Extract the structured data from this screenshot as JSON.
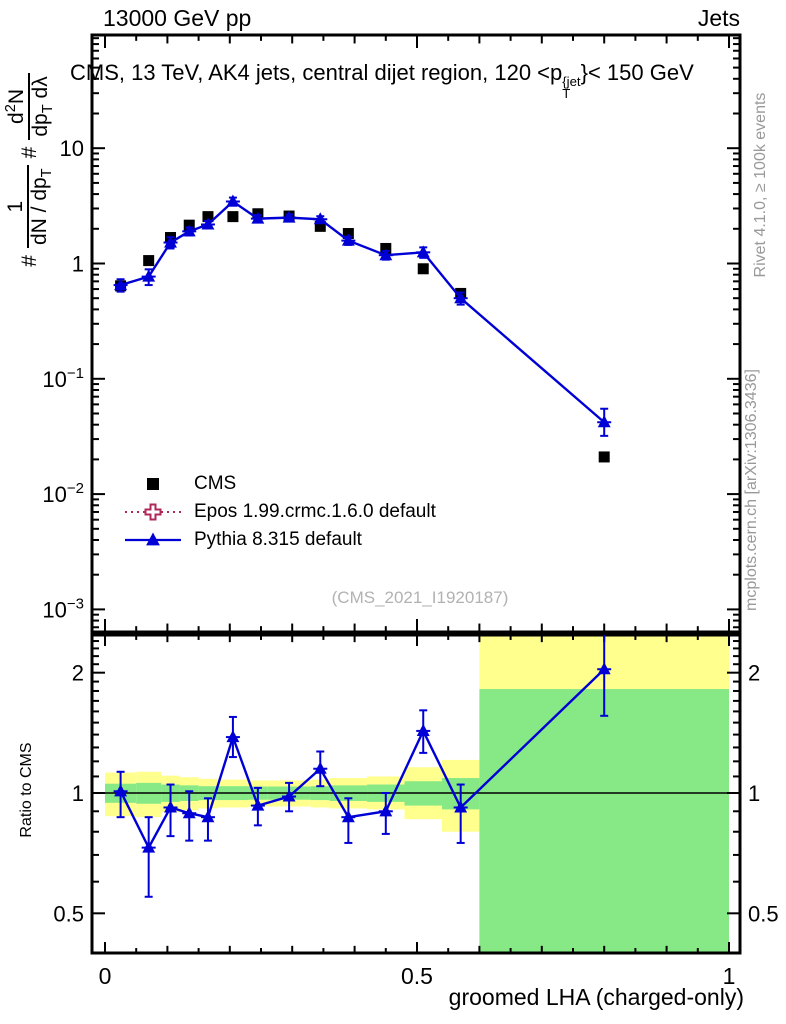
{
  "header": {
    "left": "13000 GeV pp",
    "right": "Jets"
  },
  "title": {
    "pre": "CMS, 13 TeV, AK4 jets, central dijet region, 120 <p",
    "sup": "{jet",
    "sub": "T",
    "post": "}< 150 GeV"
  },
  "ylabel": {
    "hash1": "#",
    "f1num": [
      {
        "t": "1"
      }
    ],
    "f1den": [
      {
        "t": "dN / dp"
      },
      {
        "t": "T",
        "sub": true
      }
    ],
    "hash2": "#",
    "f2num": [
      {
        "t": "d"
      },
      {
        "t": "2",
        "sup": true
      },
      {
        "t": "N"
      }
    ],
    "f2den": [
      {
        "t": "dp"
      },
      {
        "t": "T",
        "sub": true
      },
      {
        "t": " dλ"
      }
    ]
  },
  "xlabel": "groomed LHA (charged-only)",
  "ratio_ylabel": "Ratio to CMS",
  "side": {
    "rivet": "Rivet 4.1.0, ≥ 100k events",
    "mcplots": "mcplots.cern.ch [arXiv:1306.3436]"
  },
  "watermark": "(CMS_2021_I1920187)",
  "legend": {
    "items": [
      {
        "label": "CMS",
        "marker": "square",
        "line": "none",
        "color": "#000000"
      },
      {
        "label": "Epos 1.99.crmc.1.6.0 default",
        "marker": "open-cross",
        "line": "dotted",
        "color": "#b02858"
      },
      {
        "label": "Pythia 8.315 default",
        "marker": "triangle",
        "line": "solid",
        "color": "#0000d6"
      }
    ]
  },
  "colors": {
    "cms": "#000000",
    "epos": "#b02858",
    "pythia": "#0000d6",
    "band_yellow": "#ffff8e",
    "band_green": "#86e986",
    "gray_text": "#999999",
    "watermark": "#b2b2b2"
  },
  "chart_data": {
    "type": "line",
    "title": "CMS, 13 TeV, AK4 jets, central dijet region, 120 < p_T^{jet} < 150 GeV",
    "xlabel": "groomed LHA (charged-only)",
    "ylabel": "# 1/(dN/dp_T) # d^2N/(dp_T dλ)",
    "ratio_label": "Ratio to CMS",
    "x": [
      0.025,
      0.07,
      0.105,
      0.135,
      0.165,
      0.205,
      0.245,
      0.295,
      0.345,
      0.39,
      0.45,
      0.51,
      0.57,
      0.8
    ],
    "bin_edges": [
      0,
      0.05,
      0.09,
      0.12,
      0.15,
      0.18,
      0.23,
      0.26,
      0.33,
      0.36,
      0.42,
      0.48,
      0.54,
      0.6,
      1.0
    ],
    "series": [
      {
        "name": "CMS",
        "marker": "square",
        "y": [
          0.64,
          1.06,
          1.68,
          2.15,
          2.55,
          2.55,
          2.7,
          2.58,
          2.1,
          1.82,
          1.35,
          0.9,
          0.55,
          0.021
        ]
      },
      {
        "name": "Pythia 8.315 default",
        "marker": "triangle",
        "y": [
          0.65,
          0.77,
          1.52,
          1.9,
          2.18,
          3.45,
          2.45,
          2.5,
          2.42,
          1.58,
          1.18,
          1.25,
          0.5,
          0.042
        ],
        "err_up": [
          0.08,
          0.12,
          0.17,
          0.15,
          0.16,
          0.28,
          0.18,
          0.16,
          0.15,
          0.13,
          0.1,
          0.13,
          0.06,
          0.013
        ],
        "err_dn": [
          0.08,
          0.12,
          0.17,
          0.15,
          0.16,
          0.28,
          0.18,
          0.16,
          0.15,
          0.13,
          0.1,
          0.13,
          0.06,
          0.01
        ]
      },
      {
        "name": "Epos 1.99.crmc.1.6.0 default",
        "marker": "open-cross",
        "y": []
      }
    ],
    "main_axis": {
      "scale": "log",
      "range": [
        0.00065,
        90
      ],
      "ticks": [
        {
          "v": 10,
          "t": "10"
        },
        {
          "v": 1,
          "t": "1"
        },
        {
          "v": 0.1,
          "t": "10",
          "e": "−1"
        },
        {
          "v": 0.01,
          "t": "10",
          "e": "−2"
        },
        {
          "v": 0.001,
          "t": "10",
          "e": "−3"
        }
      ]
    },
    "x_axis": {
      "range": [
        -0.021,
        1.018
      ],
      "major": [
        0,
        0.5,
        1
      ],
      "labels": [
        "0",
        "0.5",
        "1"
      ]
    },
    "ratio": {
      "scale": "log",
      "range": [
        0.4,
        2.48
      ],
      "ticks": [
        {
          "v": 0.5,
          "t": "0.5"
        },
        {
          "v": 1,
          "t": "1"
        },
        {
          "v": 2,
          "t": "2"
        }
      ],
      "values": [
        1.01,
        0.73,
        0.92,
        0.89,
        0.87,
        1.38,
        0.93,
        0.98,
        1.15,
        0.87,
        0.9,
        1.43,
        0.92,
        2.04
      ],
      "err_up": [
        0.12,
        0.14,
        0.13,
        0.12,
        0.1,
        0.17,
        0.1,
        0.08,
        0.12,
        0.1,
        0.1,
        0.18,
        0.13,
        0.5
      ],
      "err_dn": [
        0.14,
        0.18,
        0.14,
        0.13,
        0.11,
        0.15,
        0.1,
        0.08,
        0.11,
        0.12,
        0.11,
        0.17,
        0.17,
        0.48
      ],
      "band_yellow_lo": [
        0.875,
        0.87,
        0.895,
        0.905,
        0.915,
        0.92,
        0.925,
        0.925,
        0.92,
        0.915,
        0.91,
        0.86,
        0.8,
        0.4
      ],
      "band_yellow_hi": [
        1.125,
        1.13,
        1.105,
        1.095,
        1.085,
        1.08,
        1.075,
        1.075,
        1.08,
        1.09,
        1.1,
        1.16,
        1.21,
        2.48
      ],
      "band_green_lo": [
        0.945,
        0.94,
        0.95,
        0.955,
        0.96,
        0.96,
        0.962,
        0.962,
        0.96,
        0.955,
        0.95,
        0.93,
        0.91,
        0.4
      ],
      "band_green_hi": [
        1.055,
        1.06,
        1.05,
        1.045,
        1.04,
        1.04,
        1.038,
        1.038,
        1.04,
        1.045,
        1.05,
        1.07,
        1.09,
        1.82
      ]
    }
  }
}
